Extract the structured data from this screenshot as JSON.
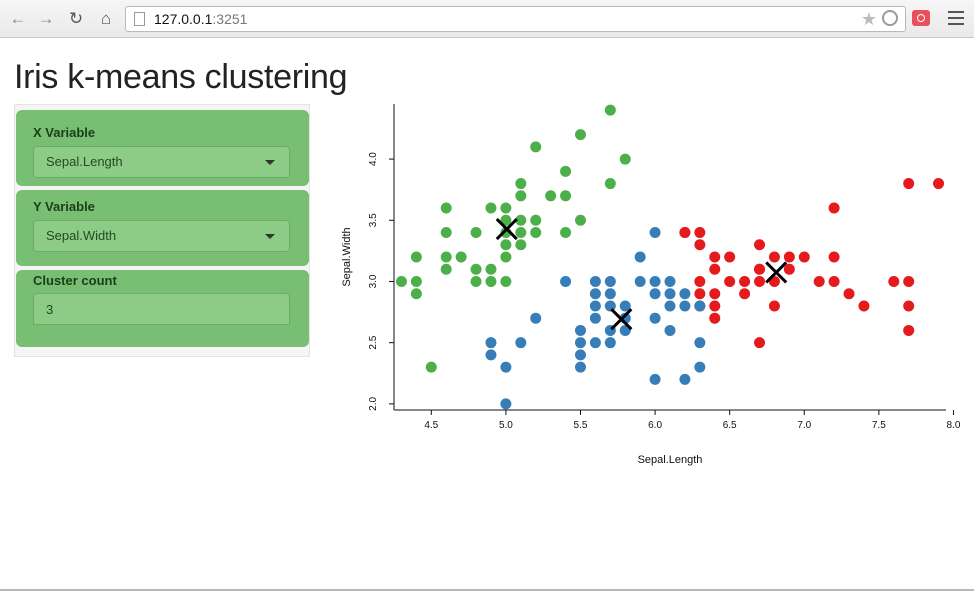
{
  "browser": {
    "url_host": "127.0.0.1",
    "url_port": ":3251"
  },
  "page": {
    "title": "Iris k-means clustering"
  },
  "sidebar": {
    "x_variable": {
      "label": "X Variable",
      "value": "Sepal.Length"
    },
    "y_variable": {
      "label": "Y Variable",
      "value": "Sepal.Width"
    },
    "cluster_count": {
      "label": "Cluster count",
      "value": "3"
    }
  },
  "chart_data": {
    "type": "scatter",
    "xlabel": "Sepal.Length",
    "ylabel": "Sepal.Width",
    "xlim": [
      4.25,
      7.95
    ],
    "ylim": [
      1.95,
      4.45
    ],
    "xticks": [
      "4.5",
      "5.0",
      "5.5",
      "6.0",
      "6.5",
      "7.0",
      "7.5",
      "8.0"
    ],
    "yticks": [
      "2.0",
      "2.5",
      "3.0",
      "3.5",
      "4.0"
    ],
    "colors": {
      "cluster1": "#e41a1c",
      "cluster2": "#377eb8",
      "cluster3": "#4daf4a",
      "centers": "#000000"
    },
    "series": [
      {
        "color": "#e41a1c",
        "points": [
          [
            7.7,
            3.8
          ],
          [
            7.9,
            3.8
          ],
          [
            7.2,
            3.6
          ],
          [
            6.2,
            3.4
          ],
          [
            6.3,
            3.4
          ],
          [
            6.3,
            3.3
          ],
          [
            6.4,
            3.2
          ],
          [
            6.5,
            3.2
          ],
          [
            6.7,
            3.3
          ],
          [
            6.7,
            3.1
          ],
          [
            6.8,
            3.2
          ],
          [
            6.9,
            3.2
          ],
          [
            7.0,
            3.2
          ],
          [
            7.2,
            3.2
          ],
          [
            6.4,
            3.1
          ],
          [
            6.7,
            3.1
          ],
          [
            6.9,
            3.1
          ],
          [
            6.3,
            3.0
          ],
          [
            6.5,
            3.0
          ],
          [
            6.6,
            3.0
          ],
          [
            6.7,
            3.0
          ],
          [
            6.8,
            3.0
          ],
          [
            7.1,
            3.0
          ],
          [
            7.2,
            3.0
          ],
          [
            7.6,
            3.0
          ],
          [
            7.7,
            3.0
          ],
          [
            6.3,
            2.9
          ],
          [
            6.4,
            2.9
          ],
          [
            6.6,
            2.9
          ],
          [
            7.3,
            2.9
          ],
          [
            6.3,
            2.8
          ],
          [
            6.4,
            2.8
          ],
          [
            6.8,
            2.8
          ],
          [
            7.4,
            2.8
          ],
          [
            7.7,
            2.8
          ],
          [
            6.4,
            2.7
          ],
          [
            6.2,
            3.4
          ],
          [
            6.7,
            2.5
          ],
          [
            7.7,
            2.6
          ]
        ]
      },
      {
        "color": "#377eb8",
        "points": [
          [
            6.0,
            3.4
          ],
          [
            5.9,
            3.2
          ],
          [
            5.4,
            3.0
          ],
          [
            5.6,
            3.0
          ],
          [
            5.7,
            3.0
          ],
          [
            5.9,
            3.0
          ],
          [
            6.0,
            3.0
          ],
          [
            6.1,
            3.0
          ],
          [
            5.6,
            2.9
          ],
          [
            5.7,
            2.9
          ],
          [
            6.0,
            2.9
          ],
          [
            6.1,
            2.9
          ],
          [
            6.2,
            2.9
          ],
          [
            5.6,
            2.8
          ],
          [
            5.7,
            2.8
          ],
          [
            5.8,
            2.8
          ],
          [
            6.1,
            2.8
          ],
          [
            6.2,
            2.8
          ],
          [
            6.3,
            2.8
          ],
          [
            5.8,
            2.7
          ],
          [
            6.0,
            2.7
          ],
          [
            5.2,
            2.7
          ],
          [
            5.6,
            2.7
          ],
          [
            5.5,
            2.6
          ],
          [
            5.7,
            2.6
          ],
          [
            5.8,
            2.6
          ],
          [
            6.1,
            2.6
          ],
          [
            4.9,
            2.5
          ],
          [
            5.1,
            2.5
          ],
          [
            5.5,
            2.5
          ],
          [
            5.6,
            2.5
          ],
          [
            5.7,
            2.5
          ],
          [
            6.3,
            2.5
          ],
          [
            4.9,
            2.4
          ],
          [
            5.5,
            2.4
          ],
          [
            5.5,
            2.3
          ],
          [
            6.3,
            2.3
          ],
          [
            5.0,
            2.3
          ],
          [
            6.0,
            2.2
          ],
          [
            6.2,
            2.2
          ],
          [
            5.0,
            2.0
          ]
        ]
      },
      {
        "color": "#4daf4a",
        "points": [
          [
            5.7,
            4.4
          ],
          [
            5.5,
            4.2
          ],
          [
            5.2,
            4.1
          ],
          [
            5.8,
            4.0
          ],
          [
            5.4,
            3.9
          ],
          [
            5.1,
            3.8
          ],
          [
            5.7,
            3.8
          ],
          [
            5.1,
            3.7
          ],
          [
            5.3,
            3.7
          ],
          [
            5.4,
            3.7
          ],
          [
            4.6,
            3.6
          ],
          [
            4.9,
            3.6
          ],
          [
            5.0,
            3.6
          ],
          [
            5.0,
            3.5
          ],
          [
            5.1,
            3.5
          ],
          [
            5.2,
            3.5
          ],
          [
            5.5,
            3.5
          ],
          [
            4.6,
            3.4
          ],
          [
            4.8,
            3.4
          ],
          [
            5.0,
            3.4
          ],
          [
            5.1,
            3.4
          ],
          [
            5.2,
            3.4
          ],
          [
            5.4,
            3.4
          ],
          [
            5.0,
            3.3
          ],
          [
            5.1,
            3.3
          ],
          [
            4.4,
            3.2
          ],
          [
            4.6,
            3.2
          ],
          [
            4.7,
            3.2
          ],
          [
            5.0,
            3.2
          ],
          [
            4.6,
            3.1
          ],
          [
            4.8,
            3.1
          ],
          [
            4.9,
            3.1
          ],
          [
            4.3,
            3.0
          ],
          [
            4.4,
            3.0
          ],
          [
            4.8,
            3.0
          ],
          [
            4.9,
            3.0
          ],
          [
            5.0,
            3.0
          ],
          [
            4.4,
            2.9
          ],
          [
            4.5,
            2.3
          ]
        ]
      }
    ],
    "centers": [
      [
        5.006,
        3.428
      ],
      [
        5.774,
        2.692
      ],
      [
        6.812,
        3.074
      ]
    ]
  }
}
